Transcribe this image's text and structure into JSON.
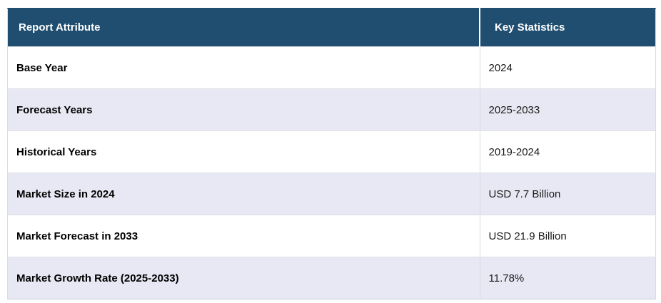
{
  "table": {
    "columns": [
      {
        "label": "Report Attribute"
      },
      {
        "label": "Key Statistics"
      }
    ],
    "rows": [
      {
        "attribute": "Base Year",
        "value": "2024"
      },
      {
        "attribute": "Forecast Years",
        "value": "2025-2033"
      },
      {
        "attribute": "Historical Years",
        "value": "2019-2024"
      },
      {
        "attribute": "Market Size in 2024",
        "value": "USD 7.7 Billion"
      },
      {
        "attribute": "Market Forecast in 2033",
        "value": "USD 21.9 Billion"
      },
      {
        "attribute": "Market Growth Rate (2025-2033)",
        "value": "11.78%"
      }
    ],
    "colors": {
      "header_bg": "#1F4E70",
      "header_text": "#FFFFFF",
      "row_bg": "#FFFFFF",
      "row_alt_bg": "#E7E8F3",
      "border": "#DFE0E6"
    }
  },
  "chart_data": {
    "type": "table",
    "columns": [
      "Report Attribute",
      "Key Statistics"
    ],
    "rows": [
      [
        "Base Year",
        "2024"
      ],
      [
        "Forecast Years",
        "2025-2033"
      ],
      [
        "Historical Years",
        "2019-2024"
      ],
      [
        "Market Size in 2024",
        "USD 7.7 Billion"
      ],
      [
        "Market Forecast in 2033",
        "USD 21.9 Billion"
      ],
      [
        "Market Growth Rate (2025-2033)",
        "11.78%"
      ]
    ]
  }
}
